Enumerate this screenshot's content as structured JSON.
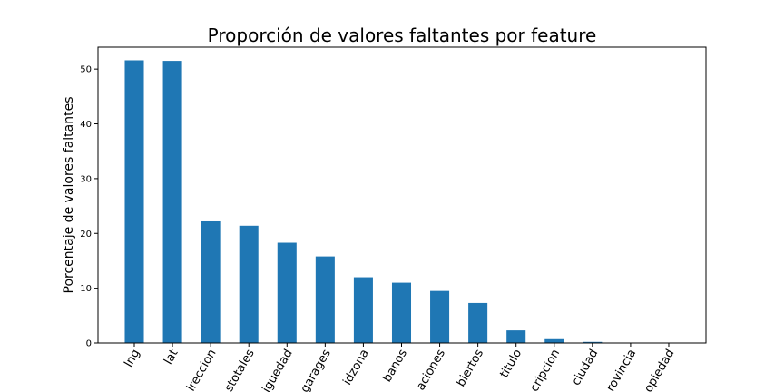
{
  "chart_data": {
    "type": "bar",
    "title": "Proporción de valores faltantes por feature",
    "ylabel": "Porcentaje de valores faltantes",
    "categories": [
      "lng",
      "lat",
      "ireccion",
      "stotales",
      "iguedad",
      "garages",
      "idzona",
      "banos",
      "aciones",
      "biertos",
      "titulo",
      "cripcion",
      "ciudad",
      "rovincia",
      "opiedad"
    ],
    "values": [
      51.6,
      51.5,
      22.2,
      21.4,
      18.3,
      15.8,
      12.0,
      11.0,
      9.5,
      7.3,
      2.3,
      0.7,
      0.2,
      0.05,
      0.02
    ],
    "color": "#1f77b4",
    "ylim": [
      0,
      54
    ],
    "yticks": [
      0,
      10,
      20,
      30,
      40,
      50
    ],
    "grid": false
  }
}
